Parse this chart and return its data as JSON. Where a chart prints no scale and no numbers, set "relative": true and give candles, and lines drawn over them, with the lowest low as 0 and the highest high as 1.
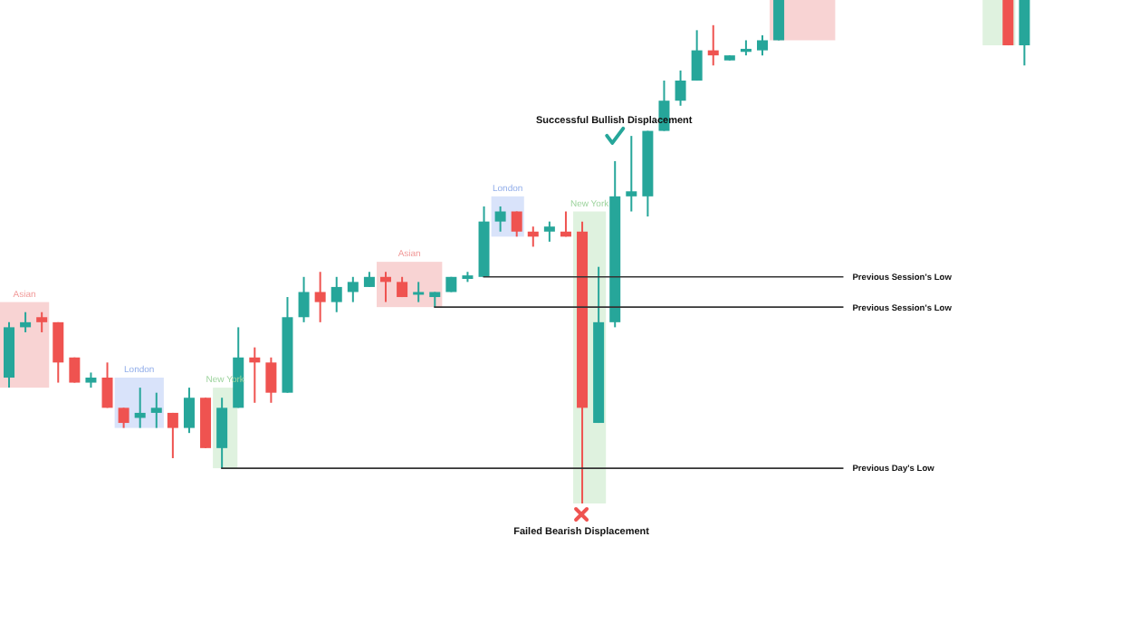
{
  "chart_data": {
    "type": "candlestick",
    "relative": true,
    "categories": [
      null,
      null,
      null,
      null,
      null,
      null,
      null,
      null,
      null,
      null,
      null,
      null,
      null,
      null,
      null,
      null,
      null,
      null,
      null,
      null,
      null,
      null,
      null,
      null,
      null,
      null,
      null,
      null,
      null,
      null,
      null,
      null,
      null,
      null,
      null,
      null,
      null,
      null,
      null,
      null,
      null,
      null,
      null,
      null,
      null,
      null,
      null,
      null,
      null,
      null,
      null,
      null,
      null,
      null,
      null,
      null,
      null,
      null,
      null,
      null,
      null,
      null,
      null,
      null,
      null,
      null,
      null,
      null,
      null
    ],
    "ohlc": [
      [
        0.25,
        0.36,
        0.23,
        0.35
      ],
      [
        0.35,
        0.38,
        0.34,
        0.36
      ],
      [
        0.37,
        0.38,
        0.34,
        0.36
      ],
      [
        0.36,
        0.36,
        0.24,
        0.28
      ],
      [
        0.29,
        0.29,
        0.24,
        0.24
      ],
      [
        0.24,
        0.26,
        0.23,
        0.25
      ],
      [
        0.25,
        0.28,
        0.19,
        0.19
      ],
      [
        0.19,
        0.19,
        0.15,
        0.16
      ],
      [
        0.17,
        0.23,
        0.15,
        0.18
      ],
      [
        0.18,
        0.22,
        0.15,
        0.19
      ],
      [
        0.18,
        0.18,
        0.09,
        0.15
      ],
      [
        0.15,
        0.23,
        0.14,
        0.21
      ],
      [
        0.21,
        0.21,
        0.11,
        0.11
      ],
      [
        0.11,
        0.21,
        0.07,
        0.19
      ],
      [
        0.19,
        0.35,
        0.19,
        0.29
      ],
      [
        0.29,
        0.31,
        0.2,
        0.28
      ],
      [
        0.28,
        0.29,
        0.2,
        0.22
      ],
      [
        0.22,
        0.41,
        0.22,
        0.37
      ],
      [
        0.37,
        0.45,
        0.36,
        0.42
      ],
      [
        0.42,
        0.46,
        0.36,
        0.4
      ],
      [
        0.4,
        0.45,
        0.38,
        0.43
      ],
      [
        0.42,
        0.45,
        0.4,
        0.44
      ],
      [
        0.43,
        0.46,
        0.43,
        0.45
      ],
      [
        0.45,
        0.46,
        0.4,
        0.44
      ],
      [
        0.44,
        0.45,
        0.41,
        0.41
      ],
      [
        0.42,
        0.44,
        0.4,
        0.42
      ],
      [
        0.41,
        0.42,
        0.39,
        0.42
      ],
      [
        0.42,
        0.45,
        0.42,
        0.45
      ],
      [
        0.446,
        0.46,
        0.44,
        0.453
      ],
      [
        0.45,
        0.59,
        0.45,
        0.56
      ],
      [
        0.56,
        0.59,
        0.54,
        0.58
      ],
      [
        0.58,
        0.58,
        0.53,
        0.54
      ],
      [
        0.54,
        0.55,
        0.51,
        0.53
      ],
      [
        0.54,
        0.56,
        0.52,
        0.55
      ],
      [
        0.54,
        0.58,
        0.53,
        0.53
      ],
      [
        0.54,
        0.56,
        0,
        0.19
      ],
      [
        0.16,
        0.47,
        0.16,
        0.36
      ],
      [
        0.36,
        0.68,
        0.35,
        0.61
      ],
      [
        0.61,
        0.73,
        0.58,
        0.62
      ],
      [
        0.61,
        0.74,
        0.57,
        0.74
      ],
      [
        0.74,
        0.84,
        0.74,
        0.8
      ],
      [
        0.8,
        0.86,
        0.79,
        0.84
      ],
      [
        0.84,
        0.94,
        0.84,
        0.9
      ],
      [
        0.9,
        0.95,
        0.87,
        0.89
      ],
      [
        0.88,
        0.89,
        0.88,
        0.89
      ],
      [
        0.897,
        0.92,
        0.89,
        0.903
      ],
      [
        0.9,
        0.93,
        0.89,
        0.92
      ],
      [
        0.92,
        1,
        0.92,
        1
      ],
      null,
      null,
      null,
      null,
      null,
      null,
      null,
      null,
      null,
      null,
      null,
      null,
      null,
      [
        1,
        1,
        0.91,
        0.91
      ],
      [
        0.91,
        1,
        0.87,
        1
      ],
      null,
      null,
      null,
      null,
      null,
      null
    ],
    "colors": [
      "#26a69a",
      "#26a69a",
      "#ef5350",
      "#ef5350",
      "#ef5350",
      "#26a69a",
      "#ef5350",
      "#ef5350",
      "#26a69a",
      "#26a69a",
      "#ef5350",
      "#26a69a",
      "#ef5350",
      "#26a69a",
      "#26a69a",
      "#ef5350",
      "#ef5350",
      "#26a69a",
      "#26a69a",
      "#ef5350",
      "#26a69a",
      "#26a69a",
      "#26a69a",
      "#ef5350",
      "#ef5350",
      "#26a69a",
      "#26a69a",
      "#26a69a",
      "#26a69a",
      "#26a69a",
      "#26a69a",
      "#ef5350",
      "#ef5350",
      "#26a69a",
      "#ef5350",
      "#ef5350",
      "#26a69a",
      "#26a69a",
      "#26a69a",
      "#26a69a",
      "#26a69a",
      "#26a69a",
      "#26a69a",
      "#ef5350",
      "#26a69a",
      "#26a69a",
      "#26a69a",
      "#26a69a",
      null,
      null,
      null,
      null,
      null,
      null,
      null,
      null,
      null,
      null,
      null,
      null,
      null,
      "#ef5350",
      "#26a69a",
      null,
      null,
      null,
      null,
      null,
      null
    ],
    "ref_lines": [
      {
        "axis": "y",
        "value": 0.45,
        "label": "Previous Session's Low",
        "color": "#333333"
      },
      {
        "axis": "y",
        "value": 0.39,
        "label": "Previous Session's Low",
        "color": "#333333"
      },
      {
        "axis": "y",
        "value": 0.07,
        "label": "Previous Day's Low",
        "color": "#333333"
      }
    ],
    "annotations": [
      "Asian",
      "London",
      "New York",
      "Asian",
      "London",
      "New York",
      "Successful Bullish Displacement",
      "Failed Bearish Displacement"
    ]
  }
}
